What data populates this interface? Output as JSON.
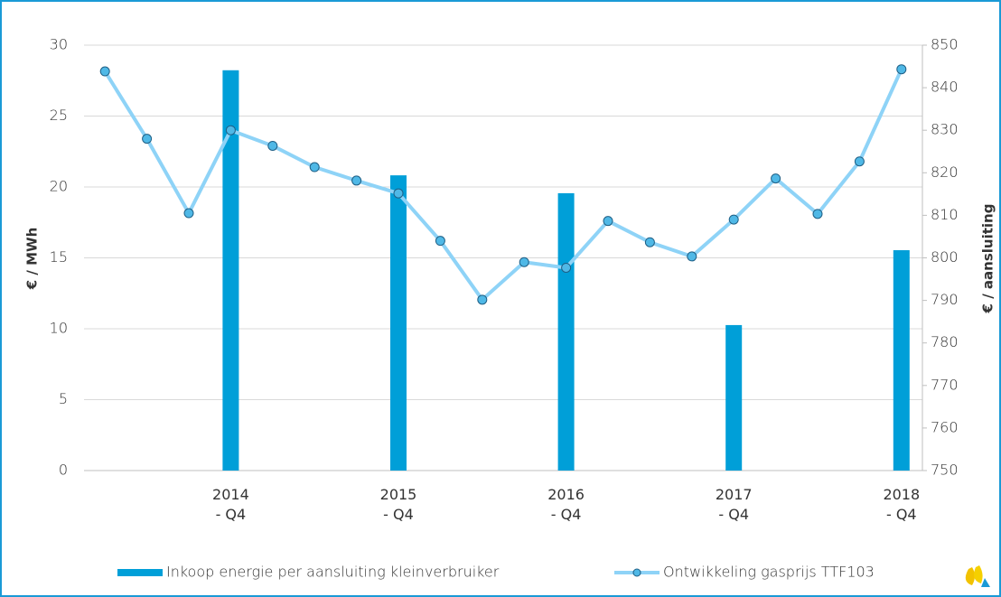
{
  "chart_data": {
    "type": "bar-line",
    "categories": [
      null,
      null,
      null,
      "2014\n- Q4",
      null,
      null,
      null,
      "2015\n- Q4",
      null,
      null,
      null,
      "2016\n- Q4",
      null,
      null,
      null,
      "2017\n- Q4",
      null,
      null,
      null,
      "2018\n- Q4"
    ],
    "ylabel": "€ / MWh",
    "y2label": "€ / aansluiting",
    "ylim": [
      0,
      30
    ],
    "yticks": [
      0,
      5,
      10,
      15,
      20,
      25,
      30
    ],
    "y2lim": [
      750,
      850
    ],
    "y2ticks": [
      750,
      760,
      770,
      780,
      790,
      800,
      810,
      820,
      830,
      840,
      850
    ],
    "series": [
      {
        "name": "Inkoop energie per aansluiting kleinverbruiker",
        "type": "bar",
        "axis": "y2",
        "color": "#009fd8",
        "values": [
          null,
          null,
          null,
          844.1,
          null,
          null,
          null,
          819.4,
          null,
          null,
          null,
          815.2,
          null,
          null,
          null,
          784.2,
          null,
          null,
          null,
          801.8
        ]
      },
      {
        "name": "Ontwikkeling gasprijs TTF103",
        "type": "line",
        "axis": "y",
        "color": "#8ed3f7",
        "marker_color": "#4fb8e6",
        "values": [
          28.15,
          23.4,
          18.15,
          24.0,
          22.9,
          21.4,
          20.45,
          19.55,
          16.2,
          12.05,
          14.7,
          14.3,
          17.6,
          16.1,
          15.1,
          17.7,
          20.6,
          18.1,
          21.8,
          28.3
        ]
      }
    ],
    "legend": "bottom"
  }
}
